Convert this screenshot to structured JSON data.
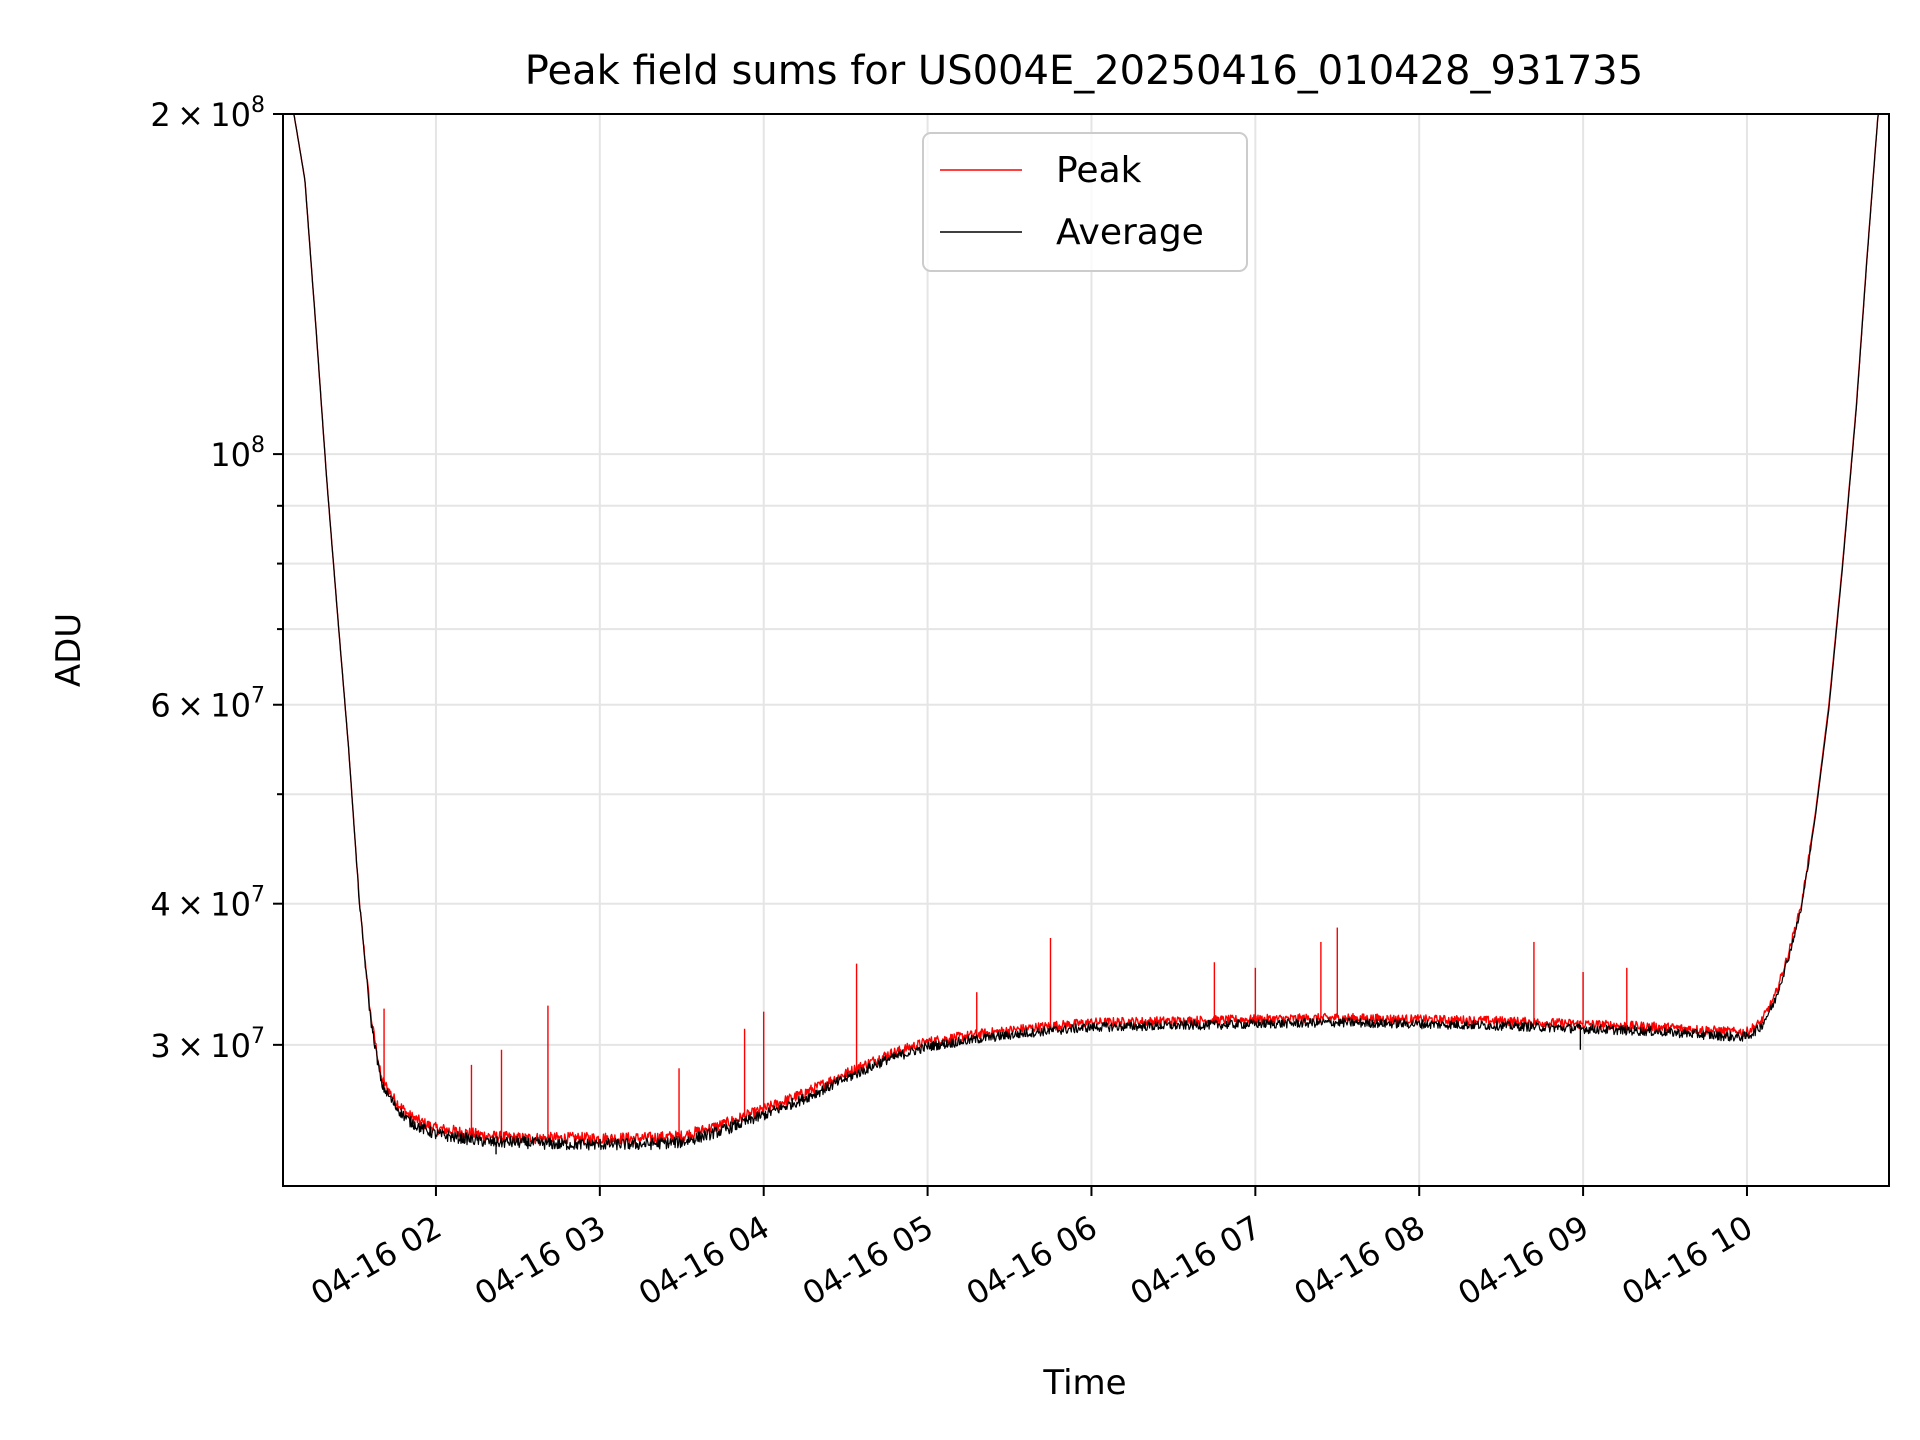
{
  "chart_data": {
    "type": "line",
    "title": "Peak field sums for US004E_20250416_010428_931735",
    "xlabel": "Time",
    "ylabel": "ADU",
    "yscale": "log",
    "ylim": [
      22500000,
      200000000
    ],
    "xlim": [
      "2025-04-16 01:04",
      "2025-04-16 10:52"
    ],
    "grid": true,
    "legend_position": "top-center",
    "x_ticks": [
      {
        "value": "2025-04-16 02:00",
        "label": "04-16 02"
      },
      {
        "value": "2025-04-16 03:00",
        "label": "04-16 03"
      },
      {
        "value": "2025-04-16 04:00",
        "label": "04-16 04"
      },
      {
        "value": "2025-04-16 05:00",
        "label": "04-16 05"
      },
      {
        "value": "2025-04-16 06:00",
        "label": "04-16 06"
      },
      {
        "value": "2025-04-16 07:00",
        "label": "04-16 07"
      },
      {
        "value": "2025-04-16 08:00",
        "label": "04-16 08"
      },
      {
        "value": "2025-04-16 09:00",
        "label": "04-16 09"
      },
      {
        "value": "2025-04-16 10:00",
        "label": "04-16 10"
      }
    ],
    "y_ticks": [
      {
        "value": 200000000,
        "mantissa": "2",
        "exp": "8"
      },
      {
        "value": 100000000,
        "mantissa": "",
        "exp": "8"
      },
      {
        "value": 60000000,
        "mantissa": "6",
        "exp": "7"
      },
      {
        "value": 40000000,
        "mantissa": "4",
        "exp": "7"
      },
      {
        "value": 30000000,
        "mantissa": "3",
        "exp": "7"
      }
    ],
    "y_minor_ticks": [
      90000000,
      80000000,
      70000000,
      50000000
    ],
    "series": [
      {
        "name": "Peak",
        "color": "#ff0000",
        "noise_amplitude": 300000,
        "x": [
          "2025-04-16 01:04",
          "2025-04-16 01:08",
          "2025-04-16 01:12",
          "2025-04-16 01:16",
          "2025-04-16 01:20",
          "2025-04-16 01:24",
          "2025-04-16 01:28",
          "2025-04-16 01:32",
          "2025-04-16 01:36",
          "2025-04-16 01:40",
          "2025-04-16 01:45",
          "2025-04-16 01:50",
          "2025-04-16 01:55",
          "2025-04-16 02:00",
          "2025-04-16 02:10",
          "2025-04-16 02:20",
          "2025-04-16 02:30",
          "2025-04-16 02:45",
          "2025-04-16 03:00",
          "2025-04-16 03:15",
          "2025-04-16 03:30",
          "2025-04-16 03:45",
          "2025-04-16 04:00",
          "2025-04-16 04:15",
          "2025-04-16 04:30",
          "2025-04-16 04:45",
          "2025-04-16 05:00",
          "2025-04-16 05:20",
          "2025-04-16 05:40",
          "2025-04-16 06:00",
          "2025-04-16 06:30",
          "2025-04-16 07:00",
          "2025-04-16 07:30",
          "2025-04-16 08:00",
          "2025-04-16 08:30",
          "2025-04-16 09:00",
          "2025-04-16 09:30",
          "2025-04-16 09:55",
          "2025-04-16 10:00",
          "2025-04-16 10:05",
          "2025-04-16 10:10",
          "2025-04-16 10:15",
          "2025-04-16 10:20",
          "2025-04-16 10:25",
          "2025-04-16 10:30",
          "2025-04-16 10:35",
          "2025-04-16 10:40",
          "2025-04-16 10:44",
          "2025-04-16 10:48",
          "2025-04-16 10:52"
        ],
        "y": [
          200000000,
          200000000,
          175000000,
          130000000,
          95000000,
          72000000,
          55000000,
          40000000,
          32000000,
          28000000,
          26800000,
          26000000,
          25600000,
          25300000,
          25100000,
          24900000,
          24800000,
          24800000,
          24800000,
          24800000,
          24900000,
          25500000,
          26300000,
          27200000,
          28300000,
          29400000,
          30200000,
          30700000,
          31100000,
          31400000,
          31500000,
          31600000,
          31700000,
          31600000,
          31500000,
          31300000,
          31100000,
          30800000,
          30800000,
          31400000,
          33000000,
          36000000,
          40000000,
          48000000,
          60000000,
          80000000,
          110000000,
          150000000,
          200000000,
          200000000
        ],
        "spikes": [
          {
            "x": "2025-04-16 01:41",
            "y": 32300000
          },
          {
            "x": "2025-04-16 02:13",
            "y": 28800000
          },
          {
            "x": "2025-04-16 02:24",
            "y": 29700000
          },
          {
            "x": "2025-04-16 02:41",
            "y": 32500000
          },
          {
            "x": "2025-04-16 03:29",
            "y": 28600000
          },
          {
            "x": "2025-04-16 03:53",
            "y": 31000000
          },
          {
            "x": "2025-04-16 04:00",
            "y": 32100000
          },
          {
            "x": "2025-04-16 04:34",
            "y": 35400000
          },
          {
            "x": "2025-04-16 05:18",
            "y": 33400000
          },
          {
            "x": "2025-04-16 05:45",
            "y": 37300000
          },
          {
            "x": "2025-04-16 06:45",
            "y": 35500000
          },
          {
            "x": "2025-04-16 07:00",
            "y": 35100000
          },
          {
            "x": "2025-04-16 07:24",
            "y": 37000000
          },
          {
            "x": "2025-04-16 07:30",
            "y": 38100000
          },
          {
            "x": "2025-04-16 08:42",
            "y": 37000000
          },
          {
            "x": "2025-04-16 09:00",
            "y": 34800000
          },
          {
            "x": "2025-04-16 09:16",
            "y": 35100000
          }
        ]
      },
      {
        "name": "Average",
        "color": "#000000",
        "noise_amplitude": 300000,
        "x": [
          "2025-04-16 01:04",
          "2025-04-16 01:08",
          "2025-04-16 01:12",
          "2025-04-16 01:16",
          "2025-04-16 01:20",
          "2025-04-16 01:24",
          "2025-04-16 01:28",
          "2025-04-16 01:32",
          "2025-04-16 01:36",
          "2025-04-16 01:40",
          "2025-04-16 01:45",
          "2025-04-16 01:50",
          "2025-04-16 01:55",
          "2025-04-16 02:00",
          "2025-04-16 02:10",
          "2025-04-16 02:20",
          "2025-04-16 02:30",
          "2025-04-16 02:45",
          "2025-04-16 03:00",
          "2025-04-16 03:15",
          "2025-04-16 03:30",
          "2025-04-16 03:45",
          "2025-04-16 04:00",
          "2025-04-16 04:15",
          "2025-04-16 04:30",
          "2025-04-16 04:45",
          "2025-04-16 05:00",
          "2025-04-16 05:20",
          "2025-04-16 05:40",
          "2025-04-16 06:00",
          "2025-04-16 06:30",
          "2025-04-16 07:00",
          "2025-04-16 07:30",
          "2025-04-16 08:00",
          "2025-04-16 08:30",
          "2025-04-16 09:00",
          "2025-04-16 09:30",
          "2025-04-16 09:55",
          "2025-04-16 10:00",
          "2025-04-16 10:05",
          "2025-04-16 10:10",
          "2025-04-16 10:15",
          "2025-04-16 10:20",
          "2025-04-16 10:25",
          "2025-04-16 10:30",
          "2025-04-16 10:35",
          "2025-04-16 10:40",
          "2025-04-16 10:44",
          "2025-04-16 10:48",
          "2025-04-16 10:52"
        ],
        "y": [
          200000000,
          200000000,
          175000000,
          130000000,
          95000000,
          72000000,
          55000000,
          40000000,
          31700000,
          27700000,
          26500000,
          25700000,
          25300000,
          25000000,
          24800000,
          24600000,
          24600000,
          24500000,
          24500000,
          24500000,
          24600000,
          25200000,
          26000000,
          26900000,
          28000000,
          29100000,
          29900000,
          30400000,
          30800000,
          31100000,
          31200000,
          31300000,
          31400000,
          31300000,
          31200000,
          31000000,
          30800000,
          30500000,
          30500000,
          31100000,
          32700000,
          35700000,
          39700000,
          47700000,
          59500000,
          79500000,
          109500000,
          149500000,
          200000000,
          200000000
        ],
        "spikes": [
          {
            "x": "2025-04-16 02:22",
            "y": 24000000
          },
          {
            "x": "2025-04-16 08:59",
            "y": 29700000
          }
        ]
      }
    ]
  }
}
